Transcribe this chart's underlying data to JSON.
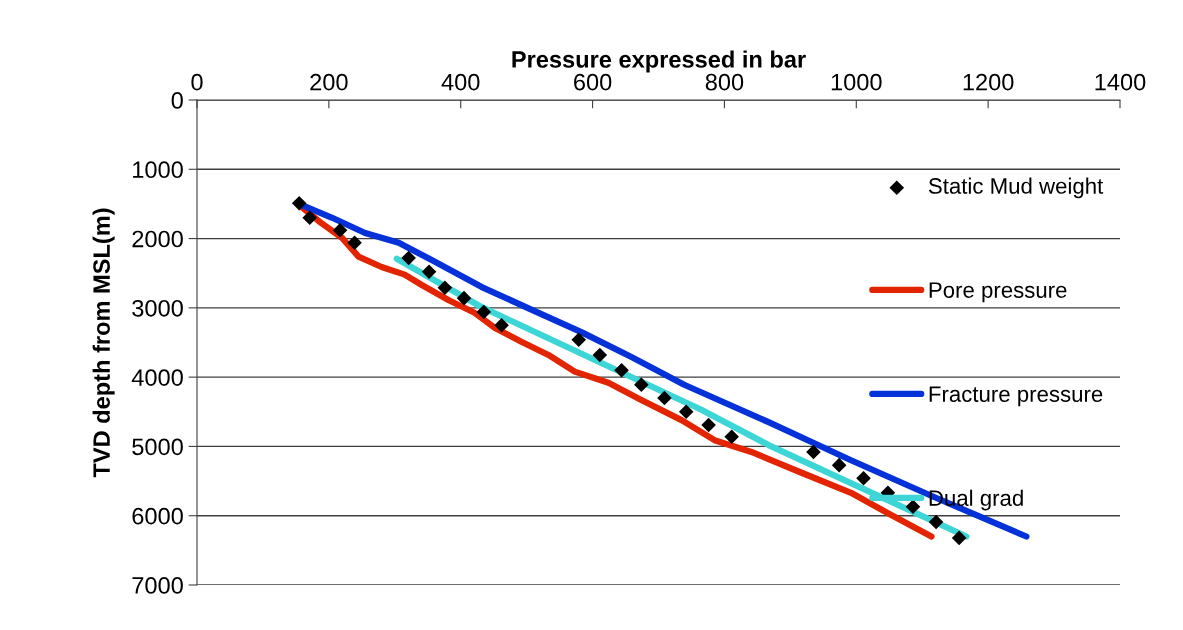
{
  "chart_data": {
    "type": "line",
    "xlabel": "Pressure expressed in bar",
    "ylabel": "TVD depth from MSL(m)",
    "xlim": [
      0,
      1400
    ],
    "xticks": [
      0,
      200,
      400,
      600,
      800,
      1000,
      1200,
      1400
    ],
    "ylim": [
      7000,
      0
    ],
    "yticks": [
      0,
      1000,
      2000,
      3000,
      4000,
      5000,
      6000,
      7000
    ],
    "grid": "y",
    "legend": "right",
    "series": [
      {
        "name": "Static Mud weight",
        "type": "scatter",
        "marker": "diamond",
        "color": "#000000",
        "x": [
          155,
          171,
          217,
          239,
          321,
          352,
          376,
          405,
          435,
          462,
          579,
          611,
          644,
          674,
          709,
          742,
          776,
          811,
          935,
          974,
          1011,
          1048,
          1086,
          1121,
          1156
        ],
        "values": [
          1490,
          1700,
          1880,
          2060,
          2280,
          2480,
          2710,
          2860,
          3060,
          3250,
          3460,
          3680,
          3900,
          4110,
          4300,
          4500,
          4690,
          4860,
          5080,
          5270,
          5460,
          5670,
          5870,
          6090,
          6320
        ]
      },
      {
        "name": "Pore pressure",
        "color": "#e32400",
        "x": [
          152,
          189,
          220,
          245,
          280,
          315,
          341,
          382,
          421,
          452,
          492,
          533,
          573,
          624,
          674,
          735,
          785,
          841,
          917,
          992,
          1053,
          1114
        ],
        "values": [
          1490,
          1780,
          1990,
          2260,
          2410,
          2520,
          2670,
          2890,
          3070,
          3290,
          3490,
          3680,
          3920,
          4080,
          4330,
          4620,
          4910,
          5080,
          5380,
          5670,
          5990,
          6300
        ]
      },
      {
        "name": "Fracture pressure",
        "color": "#0432d8",
        "x": [
          152,
          205,
          255,
          306,
          356,
          432,
          508,
          583,
          659,
          739,
          867,
          992,
          1118,
          1258
        ],
        "values": [
          1490,
          1700,
          1920,
          2060,
          2310,
          2700,
          3030,
          3350,
          3710,
          4110,
          4650,
          5200,
          5730,
          6300
        ]
      },
      {
        "name": "Dual grad",
        "color": "#3dd5d5",
        "x": [
          303,
          432,
          765,
          867,
          1167
        ],
        "values": [
          2290,
          2990,
          4470,
          4980,
          6300
        ]
      }
    ]
  }
}
